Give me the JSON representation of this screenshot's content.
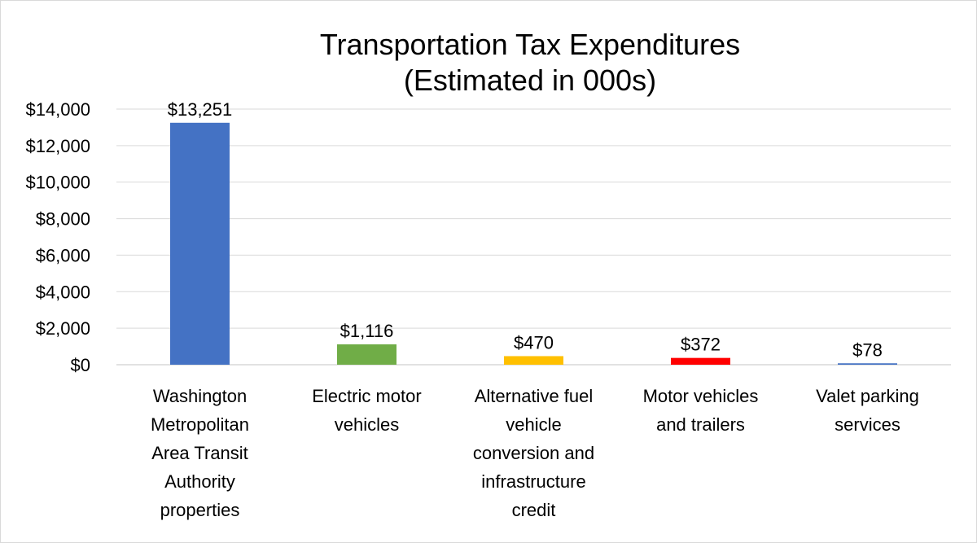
{
  "chart_data": {
    "type": "bar",
    "title_lines": [
      "Transportation Tax Expenditures",
      "(Estimated in 000s)"
    ],
    "categories": [
      "Washington Metropolitan Area Transit Authority properties",
      "Electric motor vehicles",
      "Alternative fuel vehicle conversion and infrastructure credit",
      "Motor vehicles and trailers",
      "Valet parking services"
    ],
    "category_lines": [
      [
        "Washington",
        "Metropolitan",
        "Area Transit",
        "Authority",
        "properties"
      ],
      [
        "Electric motor",
        "vehicles"
      ],
      [
        "Alternative fuel",
        "vehicle",
        "conversion and",
        "infrastructure",
        "credit"
      ],
      [
        "Motor vehicles",
        "and trailers"
      ],
      [
        "Valet parking",
        "services"
      ]
    ],
    "values": [
      13251,
      1116,
      470,
      372,
      78
    ],
    "data_labels": [
      "$13,251",
      "$1,116",
      "$470",
      "$372",
      "$78"
    ],
    "colors": [
      "#4472c4",
      "#70ad47",
      "#ffc000",
      "#ff0000",
      "#4472c4"
    ],
    "ylim": [
      0,
      14000
    ],
    "y_ticks": [
      0,
      2000,
      4000,
      6000,
      8000,
      10000,
      12000,
      14000
    ],
    "y_tick_labels": [
      "$0",
      "$2,000",
      "$4,000",
      "$6,000",
      "$8,000",
      "$10,000",
      "$12,000",
      "$14,000"
    ],
    "grid": true,
    "grid_color": "#d9d9d9",
    "legend": "none"
  }
}
